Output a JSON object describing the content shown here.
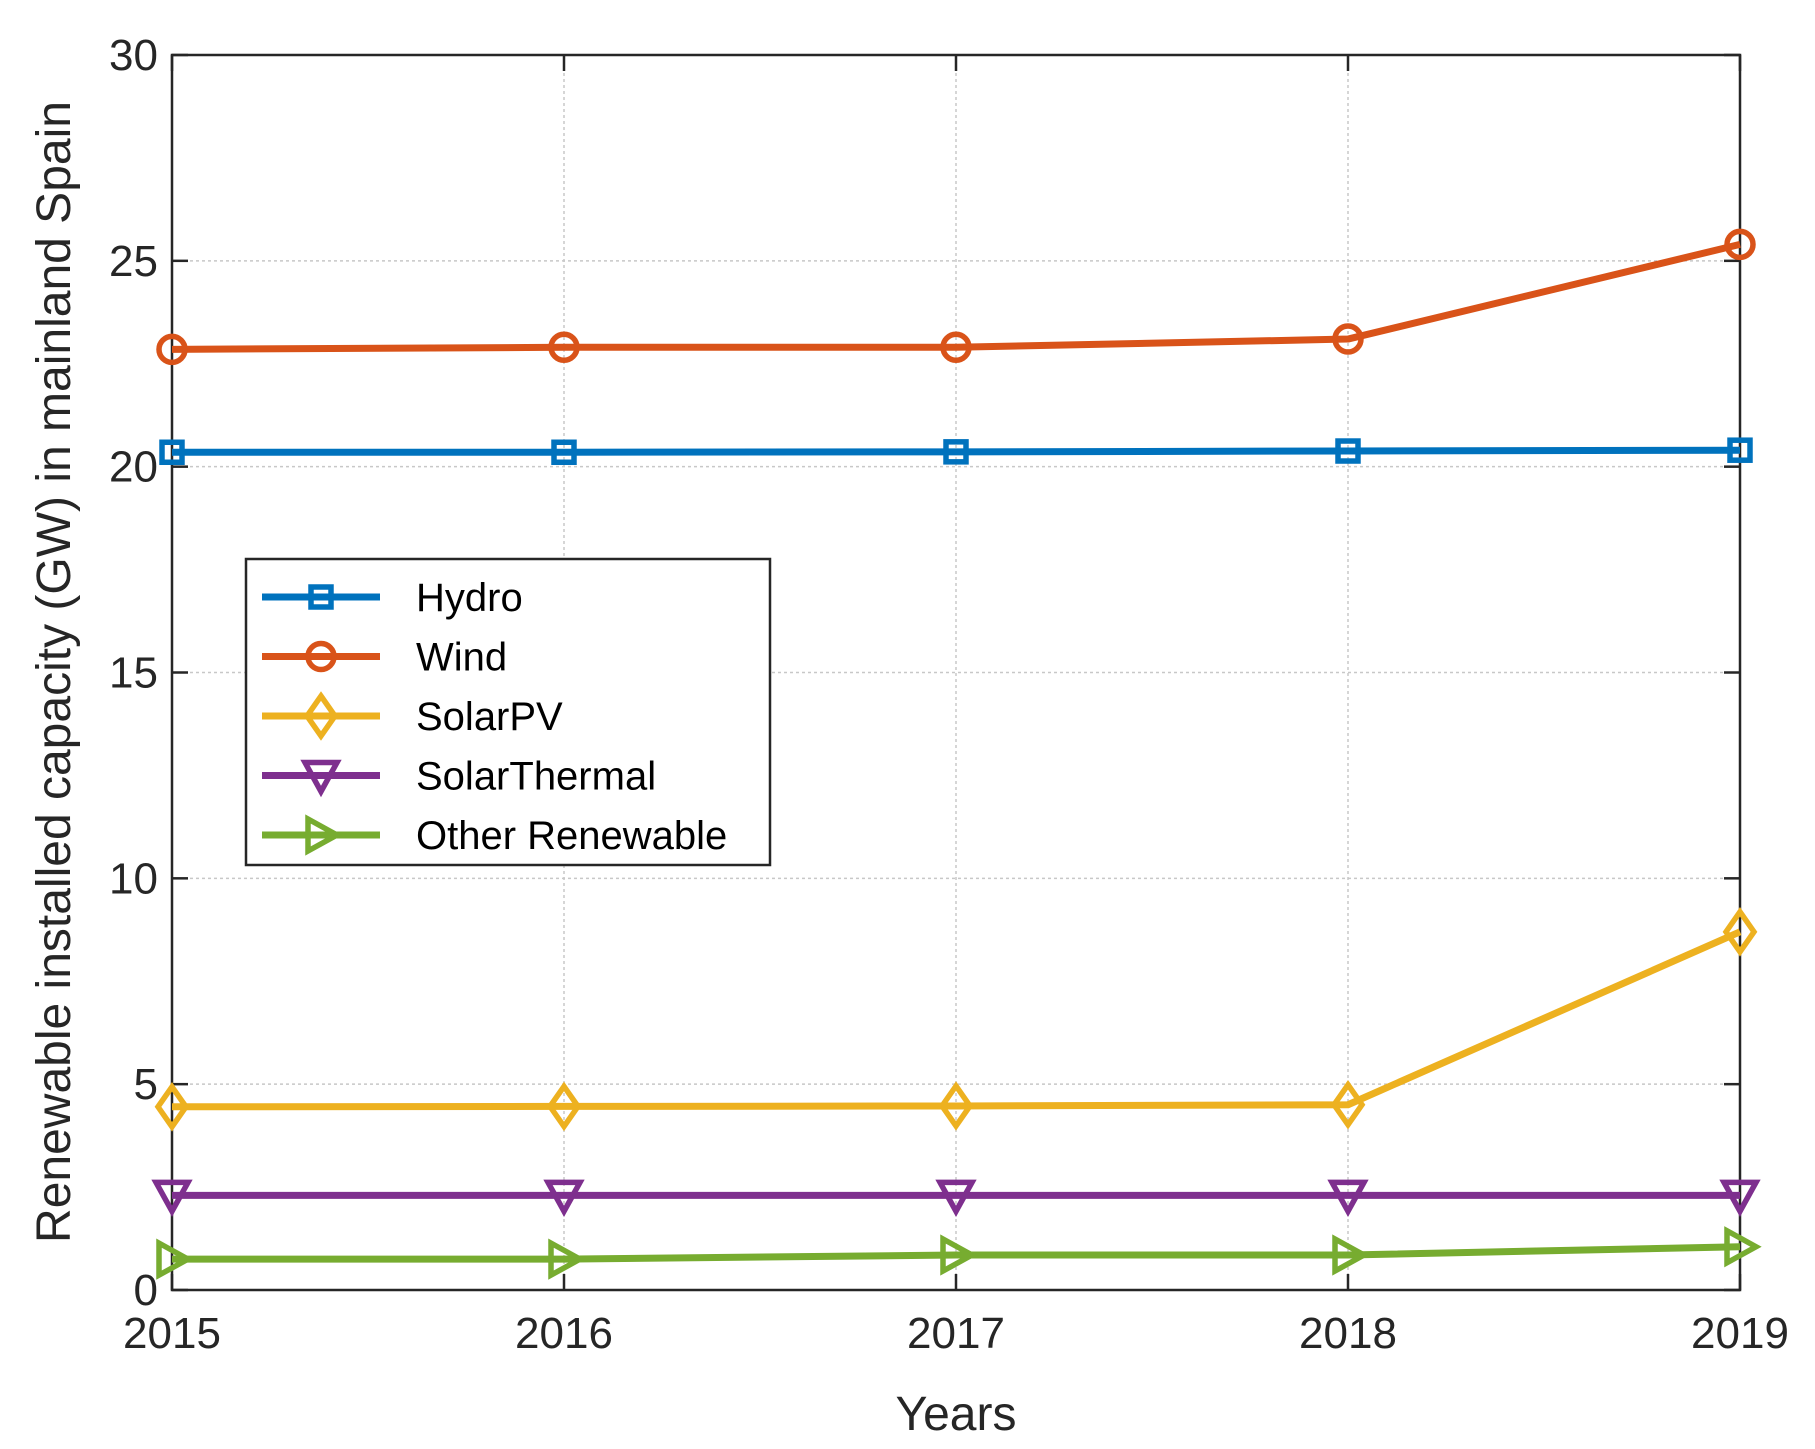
{
  "chart_data": {
    "type": "line",
    "title": "",
    "xlabel": "Years",
    "ylabel": "Renewable installed capacity (GW) in mainland Spain",
    "x": [
      2015,
      2016,
      2017,
      2018,
      2019
    ],
    "x_tick_labels": [
      "2015",
      "2016",
      "2017",
      "2018",
      "2019"
    ],
    "y_ticks": [
      0,
      5,
      10,
      15,
      20,
      25,
      30
    ],
    "y_tick_labels": [
      "0",
      "5",
      "10",
      "15",
      "20",
      "25",
      "30"
    ],
    "xlim": [
      2015,
      2019
    ],
    "ylim": [
      0,
      30
    ],
    "grid": true,
    "legend_position": "center-left",
    "series": [
      {
        "name": "Hydro",
        "marker": "square",
        "color": "#0072BD",
        "values": [
          20.35,
          20.35,
          20.36,
          20.38,
          20.4
        ]
      },
      {
        "name": "Wind",
        "marker": "circle",
        "color": "#D95319",
        "values": [
          22.85,
          22.9,
          22.9,
          23.1,
          25.4
        ]
      },
      {
        "name": "SolarPV",
        "marker": "diamond",
        "color": "#EDB120",
        "values": [
          4.45,
          4.46,
          4.47,
          4.5,
          8.7
        ]
      },
      {
        "name": "SolarThermal",
        "marker": "triangle-down",
        "color": "#7E2F8E",
        "values": [
          2.3,
          2.3,
          2.3,
          2.3,
          2.3
        ]
      },
      {
        "name": "Other Renewable",
        "marker": "triangle-right",
        "color": "#77AC30",
        "values": [
          0.75,
          0.75,
          0.85,
          0.85,
          1.05
        ]
      }
    ]
  }
}
